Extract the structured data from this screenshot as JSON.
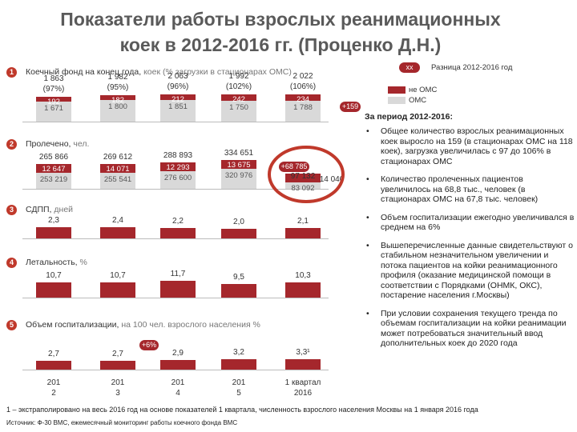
{
  "title_line1": "Показатели работы взрослых реанимационных",
  "title_line2": "коек в 2012-2016 гг. (Проценко Д.Н.)",
  "legend": {
    "badge": "хх",
    "diff_label": "Разница 2012-2016 год",
    "non_oms": "не ОМС",
    "oms": "ОМС"
  },
  "sections": {
    "s1": {
      "num": "1",
      "label": "Коечный фонд на конец года, ",
      "sub": "коек (% загрузки в стационарах ОМС)"
    },
    "s2": {
      "num": "2",
      "label": "Пролечено, ",
      "sub": "чел."
    },
    "s3": {
      "num": "3",
      "label": "СДПП, ",
      "sub": "дней"
    },
    "s4": {
      "num": "4",
      "label": "Летальность, ",
      "sub": "%"
    },
    "s5": {
      "num": "5",
      "label": "Объем госпитализации, ",
      "sub": "на 100 чел. взрослого населения %"
    }
  },
  "chart_data": [
    {
      "type": "bar",
      "title": "Коечный фонд на конец года, коек (% загрузки в стационарах ОМС)",
      "categories": [
        "2012",
        "2013",
        "2014",
        "2015",
        "1 квартал 2016"
      ],
      "totals": [
        "1 863",
        "1 982",
        "2 063",
        "1 992",
        "2 022"
      ],
      "pct": [
        "(97%)",
        "(95%)",
        "(96%)",
        "(102%)",
        "(106%)"
      ],
      "series": [
        {
          "name": "не ОМС",
          "values": [
            192,
            182,
            212,
            242,
            234
          ],
          "labels": [
            "192",
            "182",
            "212",
            "242",
            "234"
          ]
        },
        {
          "name": "ОМС",
          "values": [
            1671,
            1800,
            1851,
            1750,
            1788
          ],
          "labels": [
            "1 671",
            "1 800",
            "1 851",
            "1 750",
            "1 788"
          ]
        }
      ],
      "delta": "+159"
    },
    {
      "type": "bar",
      "title": "Пролечено, чел.",
      "categories": [
        "2012",
        "2013",
        "2014",
        "2015",
        "1 квартал 2016"
      ],
      "totals": [
        "265 866",
        "269 612",
        "288 893",
        "334 651",
        ""
      ],
      "series": [
        {
          "name": "не ОМС",
          "values": [
            12647,
            14071,
            12293,
            13675,
            14040
          ],
          "labels": [
            "12 647",
            "14 071",
            "12 293",
            "13 675",
            "14 040"
          ]
        },
        {
          "name": "ОМС",
          "values": [
            253219,
            255541,
            276600,
            320976,
            83092
          ],
          "labels": [
            "253 219",
            "255 541",
            "276 600",
            "320 976",
            "83 092"
          ]
        }
      ],
      "q2016_total": "97 132",
      "delta": "+68 785"
    },
    {
      "type": "bar",
      "title": "СДПП, дней",
      "categories": [
        "2012",
        "2013",
        "2014",
        "2015",
        "1 квартал 2016"
      ],
      "values": [
        2.3,
        2.4,
        2.2,
        2.0,
        2.1
      ],
      "labels": [
        "2,3",
        "2,4",
        "2,2",
        "2,0",
        "2,1"
      ]
    },
    {
      "type": "bar",
      "title": "Летальность, %",
      "categories": [
        "2012",
        "2013",
        "2014",
        "2015",
        "1 квартал 2016"
      ],
      "values": [
        10.7,
        10.7,
        11.7,
        9.5,
        10.3
      ],
      "labels": [
        "10,7",
        "10,7",
        "11,7",
        "9,5",
        "10,3"
      ]
    },
    {
      "type": "bar",
      "title": "Объем госпитализации, на 100 чел. взрослого населения %",
      "categories": [
        "2012",
        "2013",
        "2014",
        "2015",
        "1 квартал 2016"
      ],
      "values": [
        2.7,
        2.7,
        2.9,
        3.2,
        3.3
      ],
      "labels": [
        "2,7",
        "2,7",
        "2,9",
        "3,2",
        "3,3¹"
      ],
      "delta": "+6%"
    }
  ],
  "years": [
    {
      "l1": "201",
      "l2": "2"
    },
    {
      "l1": "201",
      "l2": "3"
    },
    {
      "l1": "201",
      "l2": "4"
    },
    {
      "l1": "201",
      "l2": "5"
    },
    {
      "l1": "1 квартал",
      "l2": "2016"
    }
  ],
  "right_panel": {
    "head": "За период 2012-2016:",
    "bullets": [
      "Общее количество взрослых реанимационных коек выросло на 159 (в стационарах ОМС на 118 коек), загрузка увеличилась с 97 до 106% в стационарах ОМС",
      "Количество пролеченных пациентов увеличилось на 68,8 тыс., человек (в стационарах ОМС на 67,8 тыс. человек)",
      "Объем госпитализации ежегодно увеличивался в среднем на 6%",
      "Вышеперечисленные данные свидетельствуют о стабильном незначительном увеличении и потока пациентов на койки реанимационного профиля (оказание медицинской помощи в соответствии с Порядками (ОНМК, ОКС), постарение населения г.Москвы)",
      "При условии сохранения текущего тренда по объемам госпитализации на койки реанимации может потребоваться значительный ввод дополнительных коек до 2020 года"
    ]
  },
  "footnote": "1 – экстраполировано на весь 2016 год на основе показателей 1 квартала, численность взрослого населения Москвы на 1 января 2016 года",
  "source": "Источник: Ф-30 ВМС, ежемесячный мониторинг работы коечного фонда ВМС"
}
